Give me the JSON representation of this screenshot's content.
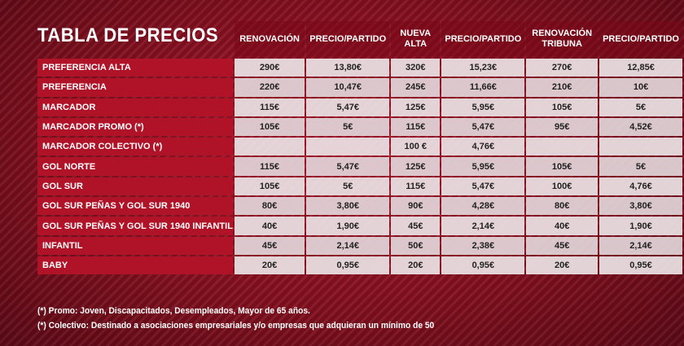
{
  "title": "TABLA DE PRECIOS",
  "headers": [
    "RENOVACIÓN",
    "PRECIO/PARTIDO",
    "NUEVA ALTA",
    "PRECIO/PARTIDO",
    "RENOVACIÓN TRIBUNA",
    "PRECIO/PARTIDO"
  ],
  "rows": [
    {
      "label": "PREFERENCIA ALTA",
      "cells": [
        "290€",
        "13,80€",
        "320€",
        "15,23€",
        "270€",
        "12,85€"
      ]
    },
    {
      "label": "PREFERENCIA",
      "cells": [
        "220€",
        "10,47€",
        "245€",
        "11,66€",
        "210€",
        "10€"
      ]
    },
    {
      "label": "MARCADOR",
      "cells": [
        "115€",
        "5,47€",
        "125€",
        "5,95€",
        "105€",
        "5€"
      ]
    },
    {
      "label": "MARCADOR PROMO (*)",
      "cells": [
        "105€",
        "5€",
        "115€",
        "5,47€",
        "95€",
        "4,52€"
      ]
    },
    {
      "label": "MARCADOR COLECTIVO (*)",
      "cells": [
        "",
        "",
        "100 €",
        "4,76€",
        "",
        ""
      ]
    },
    {
      "label": "GOL NORTE",
      "cells": [
        "115€",
        "5,47€",
        "125€",
        "5,95€",
        "105€",
        "5€"
      ]
    },
    {
      "label": "GOL SUR",
      "cells": [
        "105€",
        "5€",
        "115€",
        "5,47€",
        "100€",
        "4,76€"
      ]
    },
    {
      "label": "GOL SUR PEÑAS Y GOL SUR 1940",
      "cells": [
        "80€",
        "3,80€",
        "90€",
        "4,28€",
        "80€",
        "3,80€"
      ]
    },
    {
      "label": "GOL SUR PEÑAS Y GOL SUR 1940 INFANTIL",
      "cells": [
        "40€",
        "1,90€",
        "45€",
        "2,14€",
        "40€",
        "1,90€"
      ]
    },
    {
      "label": "INFANTIL",
      "cells": [
        "45€",
        "2,14€",
        "50€",
        "2,38€",
        "45€",
        "2,14€"
      ]
    },
    {
      "label": "BABY",
      "cells": [
        "20€",
        "0,95€",
        "20€",
        "0,95€",
        "20€",
        "0,95€"
      ]
    }
  ],
  "notes": [
    "(*) Promo: Joven, Discapacitados, Desempleados, Mayor de 65 años.",
    "(*) Colectivo: Destinado a asociaciones empresariales y/o empresas que adquieran un mínimo de 50"
  ]
}
